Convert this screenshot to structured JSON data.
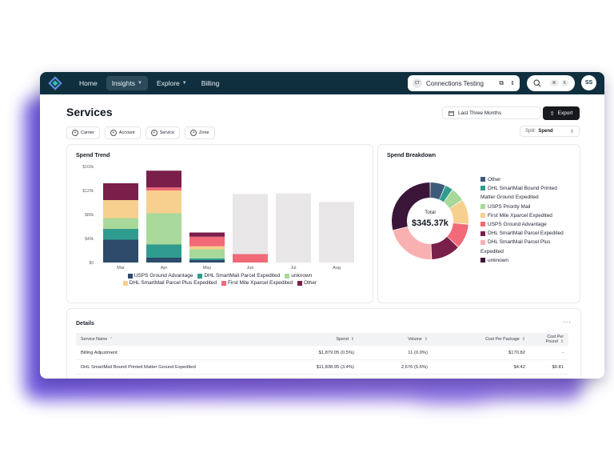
{
  "nav": {
    "items": [
      {
        "label": "Home",
        "active": false,
        "caret": false
      },
      {
        "label": "Insights",
        "active": true,
        "caret": true
      },
      {
        "label": "Explore",
        "active": false,
        "caret": true
      },
      {
        "label": "Billing",
        "active": false,
        "caret": false
      }
    ],
    "connection": {
      "badge": "CT",
      "label": "Connections Testing"
    },
    "search": {
      "shortcut": [
        "⌘",
        "K"
      ]
    },
    "avatar": "SS"
  },
  "page": {
    "title": "Services",
    "date_range": "Last Three Months",
    "export_label": "Export",
    "filters": [
      "Carrier",
      "Account",
      "Service",
      "Zone"
    ],
    "split": {
      "label": "Split:",
      "value": "Spend"
    }
  },
  "spend_trend": {
    "title": "Spend Trend",
    "legend_row1": [
      "USPS Ground Advantage",
      "DHL SmartMail Parcel Expedited",
      "unknown"
    ],
    "legend_row2": [
      "DHL SmartMail Parcel Plus Expedited",
      "First Mile Xparcel Expedited",
      "Other"
    ]
  },
  "spend_breakdown": {
    "title": "Spend Breakdown",
    "total_label": "Total",
    "total_value": "$345.37k",
    "legend": [
      "Other",
      "DHL SmartMail Bound Printed Matter Ground Expedited",
      "USPS Priority Mail",
      "First Mile Xparcel Expedited",
      "USPS Ground Advantage",
      "DHL SmartMail Parcel Expedited",
      "DHL SmartMail Parcel Plus Expedited",
      "unknown"
    ]
  },
  "details": {
    "title": "Details",
    "more": "···",
    "columns": [
      "Service Name",
      "Spend",
      "Volume",
      "Cost Per Package",
      "Cost Per Pound"
    ],
    "rows": [
      [
        "Billing Adjustment",
        "$1,879.05 (0.5%)",
        "11 (0.0%)",
        "$170.82",
        "-"
      ],
      [
        "DHL SmartMail Bound Printed Matter Ground Expedited",
        "$11,838.95 (3.4%)",
        "2,676 (5.6%)",
        "$4.42",
        "$0.81"
      ]
    ]
  },
  "colors": {
    "navy": "#0f2f3f",
    "usps_ground": "#2d4a6b",
    "dhl_parcel_expedited": "#2f9c8f",
    "unknown": "#a8d99a",
    "dhl_parcel_plus": "#f7cf8e",
    "first_mile": "#f06a78",
    "other": "#7a1f4a",
    "projected": "#e8e6e6"
  },
  "chart_data": [
    {
      "type": "bar",
      "title": "Spend Trend",
      "categories": [
        "Mar",
        "Apr",
        "May",
        "Jun",
        "Jul",
        "Aug"
      ],
      "y_ticks": [
        "$0",
        "$40k",
        "$80k",
        "$120k",
        "$160k"
      ],
      "ylim": [
        0,
        160000
      ],
      "stacked": true,
      "series": [
        {
          "name": "USPS Ground Advantage",
          "color": "#2d4a6b",
          "values": [
            38000,
            8000,
            4000,
            0,
            0,
            0
          ]
        },
        {
          "name": "DHL SmartMail Parcel Expedited",
          "color": "#2f9c8f",
          "values": [
            18000,
            22000,
            3000,
            0,
            0,
            0
          ]
        },
        {
          "name": "unknown",
          "color": "#a8d99a",
          "values": [
            18000,
            52000,
            15000,
            0,
            0,
            0
          ]
        },
        {
          "name": "DHL SmartMail Parcel Plus Expedited",
          "color": "#f7cf8e",
          "values": [
            30000,
            38000,
            5000,
            0,
            0,
            0
          ]
        },
        {
          "name": "First Mile Xparcel Expedited",
          "color": "#f06a78",
          "values": [
            0,
            5000,
            16000,
            14000,
            0,
            0
          ]
        },
        {
          "name": "Other",
          "color": "#7a1f4a",
          "values": [
            28000,
            28000,
            7000,
            0,
            0,
            0
          ]
        },
        {
          "name": "",
          "color": "#e8e6e6",
          "values": [
            0,
            0,
            0,
            100000,
            115000,
            101000
          ]
        }
      ]
    },
    {
      "type": "pie",
      "title": "Spend Breakdown",
      "donut": true,
      "center_label": "Total",
      "center_value": "$345.37k",
      "series": [
        {
          "name": "Other",
          "color": "#3d5a7a",
          "value": 6.5
        },
        {
          "name": "DHL SmartMail Bound Printed Matter Ground Expedited",
          "color": "#2f9c8f",
          "value": 3.4
        },
        {
          "name": "USPS Priority Mail",
          "color": "#a8d99a",
          "value": 6
        },
        {
          "name": "First Mile Xparcel Expedited",
          "color": "#f7cf8e",
          "value": 10.5
        },
        {
          "name": "USPS Ground Advantage",
          "color": "#f06a78",
          "value": 10.5
        },
        {
          "name": "DHL SmartMail Parcel Expedited",
          "color": "#7a1f4a",
          "value": 12.5
        },
        {
          "name": "DHL SmartMail Parcel Plus Expedited",
          "color": "#f9b0b0",
          "value": 21.6
        },
        {
          "name": "unknown",
          "color": "#3b1638",
          "value": 29
        }
      ]
    }
  ]
}
